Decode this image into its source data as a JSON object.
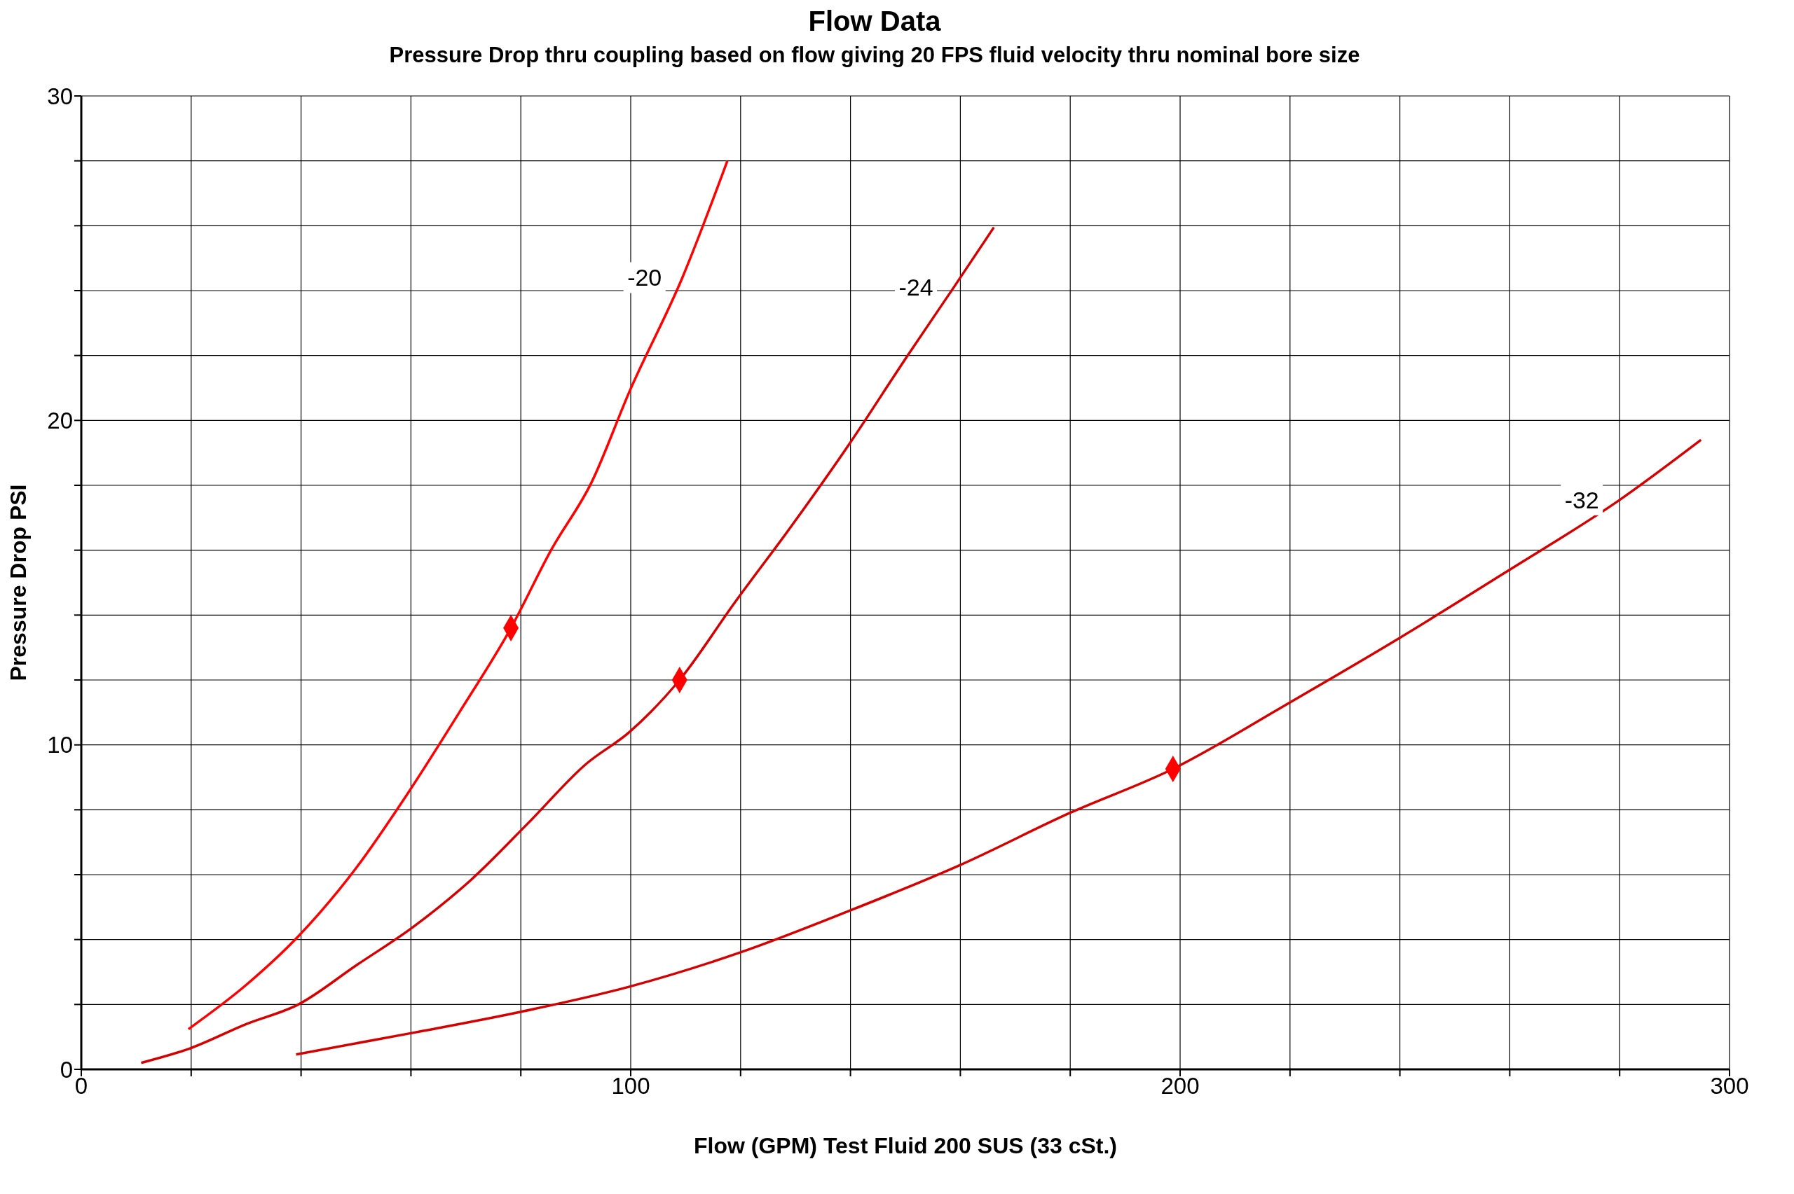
{
  "chart_data": {
    "type": "line",
    "title": "Flow Data",
    "subtitle": "Pressure Drop thru coupling based on flow giving 20 FPS fluid velocity thru nominal bore size",
    "xlabel": "Flow (GPM) Test Fluid 200 SUS (33 cSt.)",
    "ylabel": "Pressure Drop PSI",
    "xlim": [
      0,
      300
    ],
    "ylim": [
      0,
      30
    ],
    "xticks": [
      0,
      {
        "value": 20,
        "label": null
      },
      {
        "value": 40,
        "label": null
      },
      {
        "value": 60,
        "label": null
      },
      {
        "value": 80,
        "label": null
      },
      100,
      {
        "value": 120,
        "label": null
      },
      {
        "value": 140,
        "label": null
      },
      {
        "value": 160,
        "label": null
      },
      {
        "value": 180,
        "label": null
      },
      200,
      {
        "value": 220,
        "label": null
      },
      {
        "value": 240,
        "label": null
      },
      {
        "value": 260,
        "label": null
      },
      {
        "value": 280,
        "label": null
      },
      300
    ],
    "yticks": [
      0,
      {
        "value": 2,
        "label": null
      },
      {
        "value": 4,
        "label": null
      },
      {
        "value": 6,
        "label": null
      },
      {
        "value": 8,
        "label": null
      },
      10,
      {
        "value": 12,
        "label": null
      },
      {
        "value": 14,
        "label": null
      },
      {
        "value": 16,
        "label": null
      },
      {
        "value": 18,
        "label": null
      },
      20,
      {
        "value": 22,
        "label": null
      },
      {
        "value": 24,
        "label": null
      },
      {
        "value": 26,
        "label": null
      },
      {
        "value": 28,
        "label": null
      },
      30
    ],
    "grid": true,
    "marker": "none",
    "line_style": "solid",
    "series": [
      {
        "name": "-20",
        "color": "#ff0000",
        "x": [
          19.5,
          30,
          39.5,
          50,
          59.4,
          68.8,
          78.2,
          85.5,
          92.9,
          99.8,
          109.4,
          117.6
        ],
        "values": [
          1.24,
          2.6,
          4.1,
          6.2,
          8.5,
          11.0,
          13.6,
          16.0,
          18.1,
          20.9,
          24.4,
          28.0
        ]
      },
      {
        "name": "-24",
        "color": "#d40000",
        "x": [
          10.9,
          19.7,
          30.1,
          39.5,
          50,
          60.5,
          71,
          81.4,
          91.8,
          99.8,
          108.9,
          119,
          129.5,
          139.9,
          150.4,
          158.8,
          166.1
        ],
        "values": [
          0.2,
          0.64,
          1.4,
          2.0,
          3.2,
          4.4,
          5.85,
          7.6,
          9.4,
          10.4,
          12.0,
          14.4,
          16.8,
          19.3,
          22.0,
          24.1,
          25.95
        ]
      },
      {
        "name": "-32",
        "color": "#d40000",
        "x": [
          39.1,
          60.5,
          79.9,
          99.8,
          119.9,
          140,
          160,
          179.9,
          198.7,
          219.9,
          240,
          260,
          280,
          294.8
        ],
        "values": [
          0.46,
          1.13,
          1.77,
          2.55,
          3.6,
          4.9,
          6.3,
          7.9,
          9.26,
          11.3,
          13.3,
          15.4,
          17.55,
          19.4
        ]
      },
      {
        "type": "scatter",
        "marker": "diamond",
        "color": "#ff0000",
        "x": [
          78.2,
          108.9,
          198.7
        ],
        "values": [
          13.6,
          12.0,
          9.26
        ]
      }
    ]
  }
}
